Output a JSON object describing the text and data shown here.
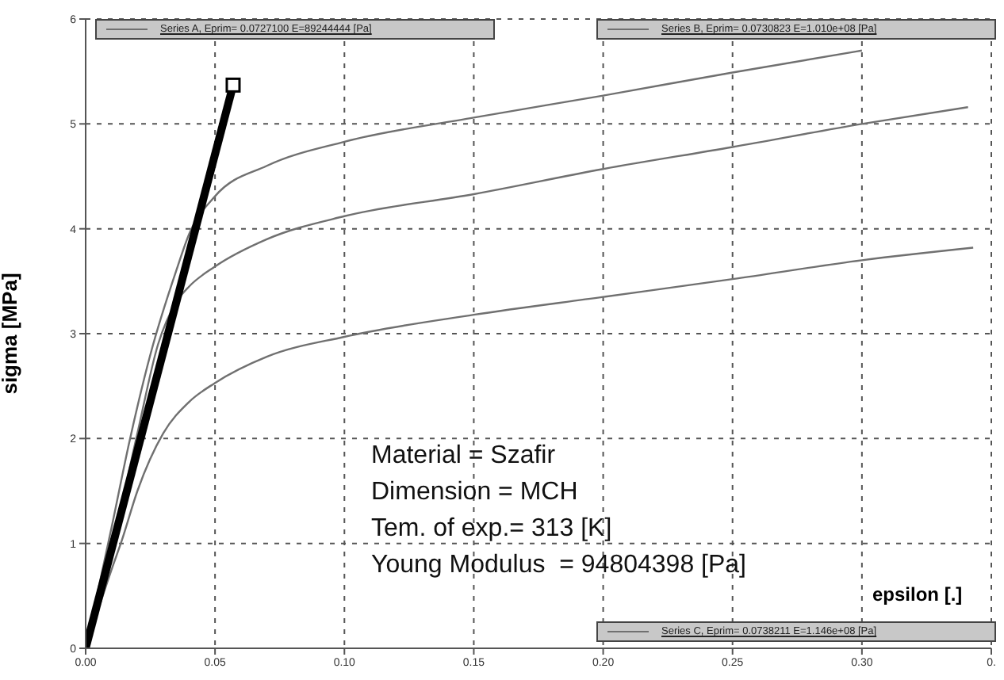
{
  "chart_data": {
    "type": "line",
    "xlabel": "epsilon [.]",
    "ylabel": "sigma [MPa]",
    "xlim": [
      0,
      0.35
    ],
    "ylim": [
      0,
      6
    ],
    "xticks": [
      {
        "value": 0,
        "label": "0.00"
      },
      {
        "value": 0.05,
        "label": "0.05"
      },
      {
        "value": 0.1,
        "label": "0.10"
      },
      {
        "value": 0.15,
        "label": "0.15"
      },
      {
        "value": 0.2,
        "label": "0.20"
      },
      {
        "value": 0.25,
        "label": "0.25"
      },
      {
        "value": 0.3,
        "label": "0.30"
      },
      {
        "value": 0.35,
        "label": "0."
      }
    ],
    "yticks": [
      0,
      1,
      2,
      3,
      4,
      5,
      6
    ],
    "grid": true,
    "legend": "top",
    "annotations": [
      "Material = Szafir",
      "Dimension = MCH",
      "Tem. of exp.= 313 [K]",
      "Young Modulus  = 94804398 [Pa]"
    ],
    "series": [
      {
        "name": "Series A, Eprim= 0.0727100 E=89244444 [Pa]",
        "color": "#707070",
        "x": [
          0,
          0.01,
          0.014,
          0.02,
          0.03,
          0.04,
          0.05,
          0.07,
          0.1,
          0.15,
          0.2,
          0.25,
          0.3,
          0.343
        ],
        "values": [
          0,
          0.75,
          1.03,
          1.5,
          2.05,
          2.35,
          2.53,
          2.78,
          2.97,
          3.18,
          3.35,
          3.52,
          3.7,
          3.82
        ]
      },
      {
        "name": "Series B, Eprim= 0.0730823 E=1.010e+08 [Pa]",
        "color": "#707070",
        "x": [
          0,
          0.01,
          0.02,
          0.028,
          0.035,
          0.04,
          0.05,
          0.07,
          0.1,
          0.15,
          0.2,
          0.25,
          0.3,
          0.341
        ],
        "values": [
          0,
          0.95,
          2.05,
          2.9,
          3.3,
          3.45,
          3.64,
          3.9,
          4.12,
          4.33,
          4.57,
          4.78,
          5.0,
          5.16
        ]
      },
      {
        "name": "Series C, Eprim= 0.0738211 E=1.146e+08 [Pa]",
        "color": "#707070",
        "x": [
          0,
          0.01,
          0.017,
          0.025,
          0.035,
          0.04,
          0.05,
          0.07,
          0.1,
          0.15,
          0.2,
          0.25,
          0.3
        ],
        "values": [
          0,
          1.15,
          1.98,
          2.8,
          3.6,
          3.95,
          4.31,
          4.6,
          4.83,
          5.06,
          5.27,
          5.49,
          5.7
        ]
      },
      {
        "color": "#000000",
        "x": [
          0,
          0.057
        ],
        "values": [
          0,
          5.37
        ],
        "marker": "square"
      }
    ]
  }
}
